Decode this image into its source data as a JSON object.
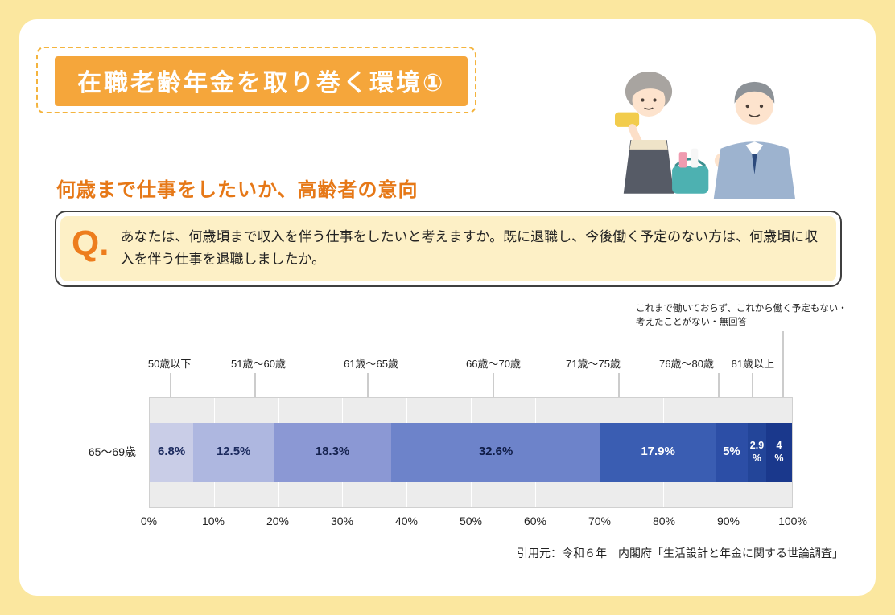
{
  "page": {
    "title": "在職老齢年金を取り巻く環境①",
    "section_heading": "何歳まで仕事をしたいか、高齢者の意向",
    "question": {
      "prefix": "Q.",
      "text": "あなたは、何歳頃まで収入を伴う仕事をしたいと考えますか。既に退職し、今後働く予定のない方は、何歳頃に収入を伴う仕事を退職しましたか。"
    },
    "source": "引用元：令和６年　内閣府「生活設計と年金に関する世論調査」"
  },
  "colors": {
    "page_background": "#fbe79f",
    "title_bar": "#f5a63b",
    "accent_orange": "#e67817",
    "question_panel": "#fdf0c6"
  },
  "chart_data": {
    "type": "bar",
    "subtype": "horizontal-stacked",
    "title": "",
    "row_label": "65〜69歳",
    "annotation": "これまで働いておらず、これから働く予定もない・\n考えたことがない・無回答",
    "x_ticks": [
      "0%",
      "10%",
      "20%",
      "30%",
      "40%",
      "50%",
      "60%",
      "70%",
      "80%",
      "90%",
      "100%"
    ],
    "xlim": [
      0,
      100
    ],
    "grid": true,
    "legend": "none",
    "segments": [
      {
        "label": "50歳以下",
        "value": 6.8,
        "display": "6.8%",
        "color": "#c9cde7",
        "text_color": "#1b2a5e",
        "line_x": 3.4,
        "label_x": 3.2
      },
      {
        "label": "51歳〜60歳",
        "value": 12.5,
        "display": "12.5%",
        "color": "#aeb7e0",
        "text_color": "#1b2a5e",
        "line_x": 16.5,
        "label_x": 17
      },
      {
        "label": "61歳〜65歳",
        "value": 18.3,
        "display": "18.3%",
        "color": "#8b98d4",
        "text_color": "#15224e",
        "line_x": 34,
        "label_x": 34.5
      },
      {
        "label": "66歳〜70歳",
        "value": 32.6,
        "display": "32.6%",
        "color": "#6d83ca",
        "text_color": "#0f1c46",
        "line_x": 53.5,
        "label_x": 53.5
      },
      {
        "label": "71歳〜75歳",
        "value": 17.9,
        "display": "17.9%",
        "color": "#3a5db2",
        "text_color": "#ffffff",
        "line_x": 73,
        "label_x": 69
      },
      {
        "label": "76歳〜80歳",
        "value": 5,
        "display": "5%",
        "color": "#2c4ea6",
        "text_color": "#ffffff",
        "line_x": 88.5,
        "label_x": 83.5
      },
      {
        "label": "81歳以上",
        "value": 2.9,
        "display": "2.9\n%",
        "color": "#234599",
        "text_color": "#ffffff",
        "line_x": 93.8,
        "label_x": 93.8
      },
      {
        "label": "これまで働いておらず、これから働く予定もない・考えたことがない・無回答",
        "value": 4,
        "display": "4\n%",
        "color": "#1a388c",
        "text_color": "#ffffff",
        "line_x": 98.5,
        "annotation_target": true
      }
    ]
  }
}
